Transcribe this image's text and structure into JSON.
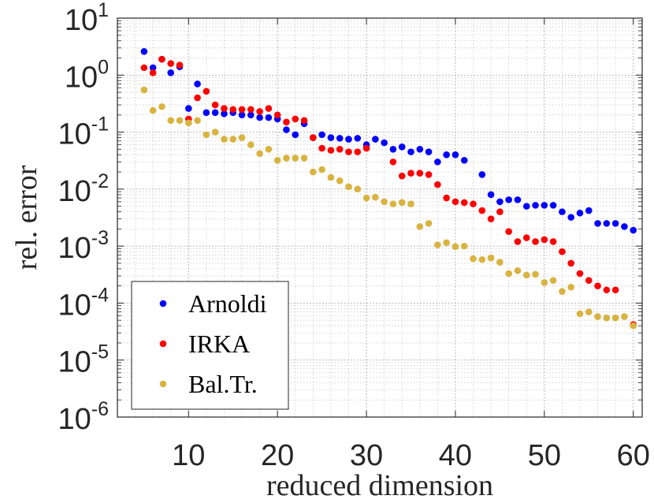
{
  "chart_data": {
    "type": "scatter",
    "xlabel": "reduced dimension",
    "ylabel": "rel. error",
    "xlim": [
      2,
      61
    ],
    "ylim_exp": [
      -6,
      1
    ],
    "xticks": [
      10,
      20,
      30,
      40,
      50,
      60
    ],
    "yticks": [
      {
        "exp": 1,
        "base": "10",
        "sup": "1"
      },
      {
        "exp": 0,
        "base": "10",
        "sup": "0"
      },
      {
        "exp": -1,
        "base": "10",
        "sup": "-1"
      },
      {
        "exp": -2,
        "base": "10",
        "sup": "-2"
      },
      {
        "exp": -3,
        "base": "10",
        "sup": "-3"
      },
      {
        "exp": -4,
        "base": "10",
        "sup": "-4"
      },
      {
        "exp": -5,
        "base": "10",
        "sup": "-5"
      },
      {
        "exp": -6,
        "base": "10",
        "sup": "-6"
      }
    ],
    "grid": true,
    "legend": "bottom-left",
    "x": [
      5,
      6,
      7,
      8,
      9,
      10,
      11,
      12,
      13,
      14,
      15,
      16,
      17,
      18,
      19,
      20,
      21,
      22,
      23,
      24,
      25,
      26,
      27,
      28,
      29,
      30,
      31,
      32,
      33,
      34,
      35,
      36,
      37,
      38,
      39,
      40,
      41,
      42,
      43,
      44,
      45,
      46,
      47,
      48,
      49,
      50,
      51,
      52,
      53,
      54,
      55,
      56,
      57,
      58,
      59,
      60
    ],
    "series": [
      {
        "name": "Arnoldi",
        "color": "#0000ff",
        "values": [
          2.6,
          1.35,
          1.9,
          1.1,
          1.4,
          0.26,
          0.7,
          0.22,
          0.22,
          0.21,
          0.22,
          0.2,
          0.2,
          0.18,
          0.18,
          0.17,
          0.11,
          0.09,
          0.14,
          0.08,
          0.09,
          0.08,
          0.078,
          0.075,
          0.078,
          0.06,
          0.075,
          0.065,
          0.05,
          0.055,
          0.045,
          0.05,
          0.045,
          0.03,
          0.04,
          0.04,
          0.032,
          null,
          0.018,
          0.008,
          0.006,
          0.0065,
          0.0065,
          0.005,
          0.0052,
          0.0052,
          0.0052,
          0.004,
          0.0032,
          0.0038,
          0.0042,
          0.0025,
          0.0025,
          0.0025,
          0.0022,
          0.0019
        ]
      },
      {
        "name": "IRKA",
        "color": "#ff0000",
        "values": [
          1.35,
          1.1,
          1.9,
          1.6,
          1.5,
          0.17,
          0.4,
          0.52,
          0.3,
          0.26,
          0.25,
          0.25,
          0.25,
          0.23,
          0.26,
          0.2,
          0.15,
          0.17,
          0.16,
          0.08,
          0.052,
          0.048,
          0.05,
          0.045,
          0.045,
          0.052,
          null,
          null,
          0.03,
          0.017,
          0.019,
          0.019,
          0.018,
          0.012,
          0.007,
          0.006,
          0.0058,
          0.0055,
          0.0042,
          0.003,
          0.004,
          0.0018,
          0.0012,
          0.0014,
          0.0012,
          0.0013,
          0.0012,
          0.0008,
          0.0005,
          0.00033,
          0.00025,
          0.0002,
          0.00017,
          0.00017,
          null,
          4.2e-05
        ]
      },
      {
        "name": "Bal.Tr.",
        "color": "#d9b340",
        "values": [
          0.55,
          0.24,
          0.28,
          0.16,
          0.16,
          0.145,
          0.16,
          0.09,
          0.1,
          0.075,
          0.075,
          0.08,
          0.06,
          0.042,
          0.05,
          0.032,
          0.035,
          0.035,
          0.035,
          0.02,
          0.022,
          0.016,
          0.014,
          0.011,
          0.01,
          0.007,
          0.0072,
          0.006,
          0.0055,
          0.0058,
          0.0055,
          0.0022,
          0.0025,
          0.00105,
          0.00115,
          0.00098,
          0.001,
          0.0006,
          0.00058,
          0.00062,
          0.00052,
          0.00033,
          0.00037,
          0.00031,
          0.00032,
          0.00023,
          0.00025,
          0.00016,
          0.00019,
          6.5e-05,
          7e-05,
          5.8e-05,
          5.5e-05,
          5.5e-05,
          5.8e-05,
          4e-05
        ]
      }
    ]
  }
}
